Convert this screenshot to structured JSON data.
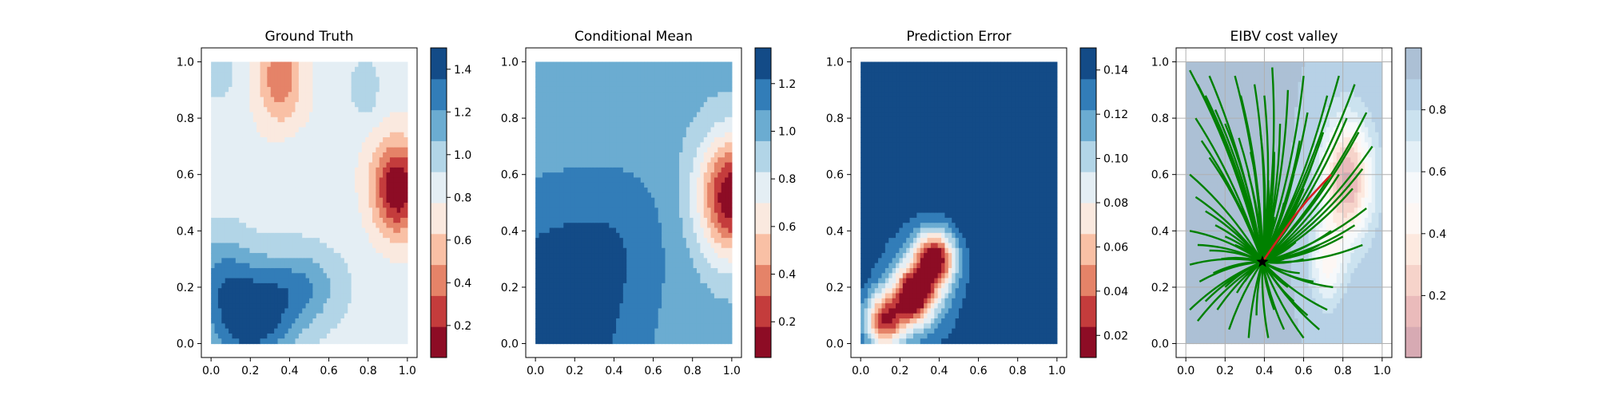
{
  "figure": {
    "panel_count": 4
  },
  "chart_data": [
    {
      "type": "heatmap",
      "title": "Ground Truth",
      "xlim": [
        0,
        1
      ],
      "ylim": [
        0,
        1
      ],
      "xticks": [
        "0.0",
        "0.2",
        "0.4",
        "0.6",
        "0.8",
        "1.0"
      ],
      "yticks": [
        "0.0",
        "0.2",
        "0.4",
        "0.6",
        "0.8",
        "1.0"
      ],
      "colormap": "RdBu",
      "colorbar": {
        "range": [
          0.05,
          1.5
        ],
        "ticks": [
          "0.2",
          "0.4",
          "0.6",
          "0.8",
          "1.0",
          "1.2",
          "1.4"
        ],
        "tick_values": [
          0.2,
          0.4,
          0.6,
          0.8,
          1.0,
          1.2,
          1.4
        ],
        "levels": 10
      },
      "field": {
        "base": 0.85,
        "components": [
          {
            "x": 0.95,
            "y": 0.55,
            "amp": -0.8,
            "sx": 0.09,
            "sy": 0.12
          },
          {
            "x": 0.55,
            "y": 0.75,
            "amp": -0.05,
            "sx": 0.3,
            "sy": 0.2
          },
          {
            "x": 0.35,
            "y": 0.95,
            "amp": -0.45,
            "sx": 0.08,
            "sy": 0.12
          },
          {
            "x": 0.2,
            "y": 0.08,
            "amp": 0.6,
            "sx": 0.15,
            "sy": 0.12
          },
          {
            "x": 0.45,
            "y": 0.2,
            "amp": 0.35,
            "sx": 0.15,
            "sy": 0.1
          },
          {
            "x": 0.05,
            "y": 0.25,
            "amp": 0.3,
            "sx": 0.12,
            "sy": 0.12
          },
          {
            "x": 0.78,
            "y": 0.9,
            "amp": 0.2,
            "sx": 0.06,
            "sy": 0.08
          },
          {
            "x": 0.03,
            "y": 0.95,
            "amp": 0.2,
            "sx": 0.06,
            "sy": 0.06
          },
          {
            "x": 0.45,
            "y": 0.6,
            "amp": 0.1,
            "sx": 0.1,
            "sy": 0.1
          }
        ]
      }
    },
    {
      "type": "heatmap",
      "title": "Conditional Mean",
      "xlim": [
        0,
        1
      ],
      "ylim": [
        0,
        1
      ],
      "xticks": [
        "0.0",
        "0.2",
        "0.4",
        "0.6",
        "0.8",
        "1.0"
      ],
      "yticks": [
        "0.0",
        "0.2",
        "0.4",
        "0.6",
        "0.8",
        "1.0"
      ],
      "colormap": "RdBu",
      "colorbar": {
        "range": [
          0.05,
          1.35
        ],
        "ticks": [
          "0.2",
          "0.4",
          "0.6",
          "0.8",
          "1.0",
          "1.2"
        ],
        "tick_values": [
          0.2,
          0.4,
          0.6,
          0.8,
          1.0,
          1.2
        ],
        "levels": 10
      },
      "field": {
        "base": 1.0,
        "components": [
          {
            "x": 1.0,
            "y": 0.52,
            "amp": -0.95,
            "sx": 0.12,
            "sy": 0.15
          },
          {
            "x": 0.1,
            "y": 0.1,
            "amp": 0.35,
            "sx": 0.3,
            "sy": 0.3
          },
          {
            "x": 0.45,
            "y": 0.4,
            "amp": 0.1,
            "sx": 0.18,
            "sy": 0.18
          }
        ]
      }
    },
    {
      "type": "heatmap",
      "title": "Prediction Error",
      "xlim": [
        0,
        1
      ],
      "ylim": [
        0,
        1
      ],
      "xticks": [
        "0.0",
        "0.2",
        "0.4",
        "0.6",
        "0.8",
        "1.0"
      ],
      "yticks": [
        "0.0",
        "0.2",
        "0.4",
        "0.6",
        "0.8",
        "1.0"
      ],
      "colormap": "RdBu",
      "colorbar": {
        "range": [
          0.01,
          0.15
        ],
        "ticks": [
          "0.02",
          "0.04",
          "0.06",
          "0.08",
          "0.10",
          "0.12",
          "0.14"
        ],
        "tick_values": [
          0.02,
          0.04,
          0.06,
          0.08,
          0.1,
          0.12,
          0.14
        ],
        "levels": 10
      },
      "field": {
        "base": 0.15,
        "components": [
          {
            "x": 0.12,
            "y": 0.08,
            "amp": -0.11,
            "sx": 0.07,
            "sy": 0.07
          },
          {
            "x": 0.27,
            "y": 0.17,
            "amp": -0.115,
            "sx": 0.07,
            "sy": 0.07
          },
          {
            "x": 0.38,
            "y": 0.3,
            "amp": -0.12,
            "sx": 0.07,
            "sy": 0.07
          },
          {
            "x": 0.3,
            "y": 0.2,
            "amp": -0.04,
            "sx": 0.15,
            "sy": 0.15
          }
        ]
      }
    },
    {
      "type": "heatmap",
      "title": "EIBV cost valley",
      "xlim": [
        0,
        1
      ],
      "ylim": [
        0,
        1
      ],
      "xticks": [
        "0.0",
        "0.2",
        "0.4",
        "0.6",
        "0.8",
        "1.0"
      ],
      "yticks": [
        "0.0",
        "0.2",
        "0.4",
        "0.6",
        "0.8",
        "1.0"
      ],
      "grid": true,
      "colormap": "RdBu (faded)",
      "colorbar": {
        "range": [
          0.0,
          1.0
        ],
        "ticks": [
          "0.2",
          "0.4",
          "0.6",
          "0.8"
        ],
        "tick_values": [
          0.2,
          0.4,
          0.6,
          0.8
        ],
        "levels": 10
      },
      "field": {
        "base": 0.9,
        "components": [
          {
            "x": 0.82,
            "y": 0.58,
            "amp": -0.82,
            "sx": 0.09,
            "sy": 0.15
          },
          {
            "x": 0.72,
            "y": 0.28,
            "amp": -0.4,
            "sx": 0.06,
            "sy": 0.1
          },
          {
            "x": 0.1,
            "y": 0.5,
            "amp": 0.08,
            "sx": 0.2,
            "sy": 0.3
          }
        ]
      },
      "start_point": {
        "x": 0.39,
        "y": 0.29,
        "marker": "star"
      },
      "candidate_paths": {
        "color": "#008000",
        "points": [
          [
            0.02,
            0.97
          ],
          [
            0.06,
            0.92
          ],
          [
            0.1,
            0.88
          ],
          [
            0.15,
            0.83
          ],
          [
            0.2,
            0.78
          ],
          [
            0.27,
            0.73
          ],
          [
            0.33,
            0.68
          ],
          [
            0.05,
            0.8
          ],
          [
            0.08,
            0.72
          ],
          [
            0.12,
            0.66
          ],
          [
            0.18,
            0.6
          ],
          [
            0.22,
            0.55
          ],
          [
            0.02,
            0.6
          ],
          [
            0.05,
            0.52
          ],
          [
            0.1,
            0.47
          ],
          [
            0.15,
            0.42
          ],
          [
            0.2,
            0.38
          ],
          [
            0.02,
            0.4
          ],
          [
            0.06,
            0.35
          ],
          [
            0.12,
            0.33
          ],
          [
            0.18,
            0.3
          ],
          [
            0.02,
            0.28
          ],
          [
            0.07,
            0.22
          ],
          [
            0.14,
            0.25
          ],
          [
            0.02,
            0.12
          ],
          [
            0.06,
            0.08
          ],
          [
            0.1,
            0.15
          ],
          [
            0.16,
            0.12
          ],
          [
            0.22,
            0.05
          ],
          [
            0.26,
            0.18
          ],
          [
            0.32,
            0.02
          ],
          [
            0.36,
            0.1
          ],
          [
            0.42,
            0.02
          ],
          [
            0.45,
            0.12
          ],
          [
            0.5,
            0.05
          ],
          [
            0.55,
            0.15
          ],
          [
            0.6,
            0.02
          ],
          [
            0.62,
            0.1
          ],
          [
            0.68,
            0.05
          ],
          [
            0.72,
            0.12
          ],
          [
            0.75,
            0.2
          ],
          [
            0.65,
            0.22
          ],
          [
            0.58,
            0.25
          ],
          [
            0.52,
            0.2
          ],
          [
            0.5,
            0.3
          ],
          [
            0.56,
            0.36
          ],
          [
            0.6,
            0.3
          ],
          [
            0.68,
            0.35
          ],
          [
            0.74,
            0.4
          ],
          [
            0.8,
            0.38
          ],
          [
            0.86,
            0.42
          ],
          [
            0.9,
            0.35
          ],
          [
            0.92,
            0.48
          ],
          [
            0.85,
            0.55
          ],
          [
            0.78,
            0.6
          ],
          [
            0.9,
            0.62
          ],
          [
            0.95,
            0.7
          ],
          [
            0.88,
            0.75
          ],
          [
            0.82,
            0.8
          ],
          [
            0.92,
            0.82
          ],
          [
            0.86,
            0.92
          ],
          [
            0.78,
            0.95
          ],
          [
            0.72,
            0.88
          ],
          [
            0.7,
            0.75
          ],
          [
            0.65,
            0.65
          ],
          [
            0.6,
            0.55
          ],
          [
            0.55,
            0.6
          ],
          [
            0.58,
            0.72
          ],
          [
            0.62,
            0.82
          ],
          [
            0.6,
            0.95
          ],
          [
            0.52,
            0.9
          ],
          [
            0.48,
            0.78
          ],
          [
            0.45,
            0.68
          ],
          [
            0.5,
            0.5
          ],
          [
            0.45,
            0.45
          ],
          [
            0.42,
            0.58
          ],
          [
            0.38,
            0.75
          ],
          [
            0.4,
            0.88
          ],
          [
            0.44,
            0.98
          ],
          [
            0.35,
            0.92
          ],
          [
            0.28,
            0.88
          ],
          [
            0.25,
            0.95
          ],
          [
            0.32,
            0.6
          ],
          [
            0.28,
            0.48
          ],
          [
            0.35,
            0.4
          ],
          [
            0.25,
            0.35
          ],
          [
            0.3,
            0.22
          ],
          [
            0.2,
            0.2
          ],
          [
            0.45,
            0.35
          ],
          [
            0.12,
            0.95
          ]
        ]
      },
      "selected_path": {
        "color": "#d62020",
        "points": [
          [
            0.39,
            0.29
          ],
          [
            0.47,
            0.37
          ],
          [
            0.55,
            0.45
          ],
          [
            0.62,
            0.51
          ],
          [
            0.7,
            0.57
          ],
          [
            0.74,
            0.6
          ]
        ]
      }
    }
  ]
}
